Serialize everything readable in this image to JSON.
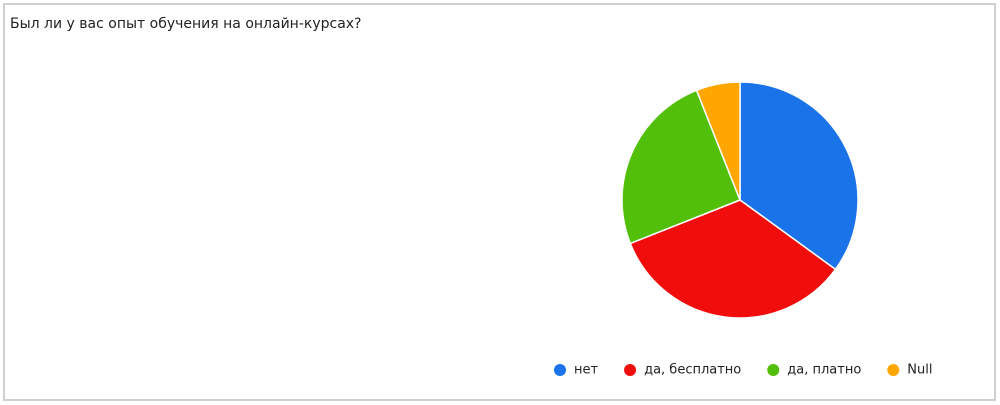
{
  "chart_data": {
    "type": "pie",
    "title": "Был ли у вас опыт обучения на онлайн-курсах?",
    "categories": [
      "нет",
      "да, бесплатно",
      "да, платно",
      "Null"
    ],
    "values": [
      35,
      34,
      25,
      6
    ],
    "colors": [
      "#1a73e8",
      "#f20d0d",
      "#52bf0a",
      "#ffa600"
    ],
    "legend": "bottom"
  }
}
